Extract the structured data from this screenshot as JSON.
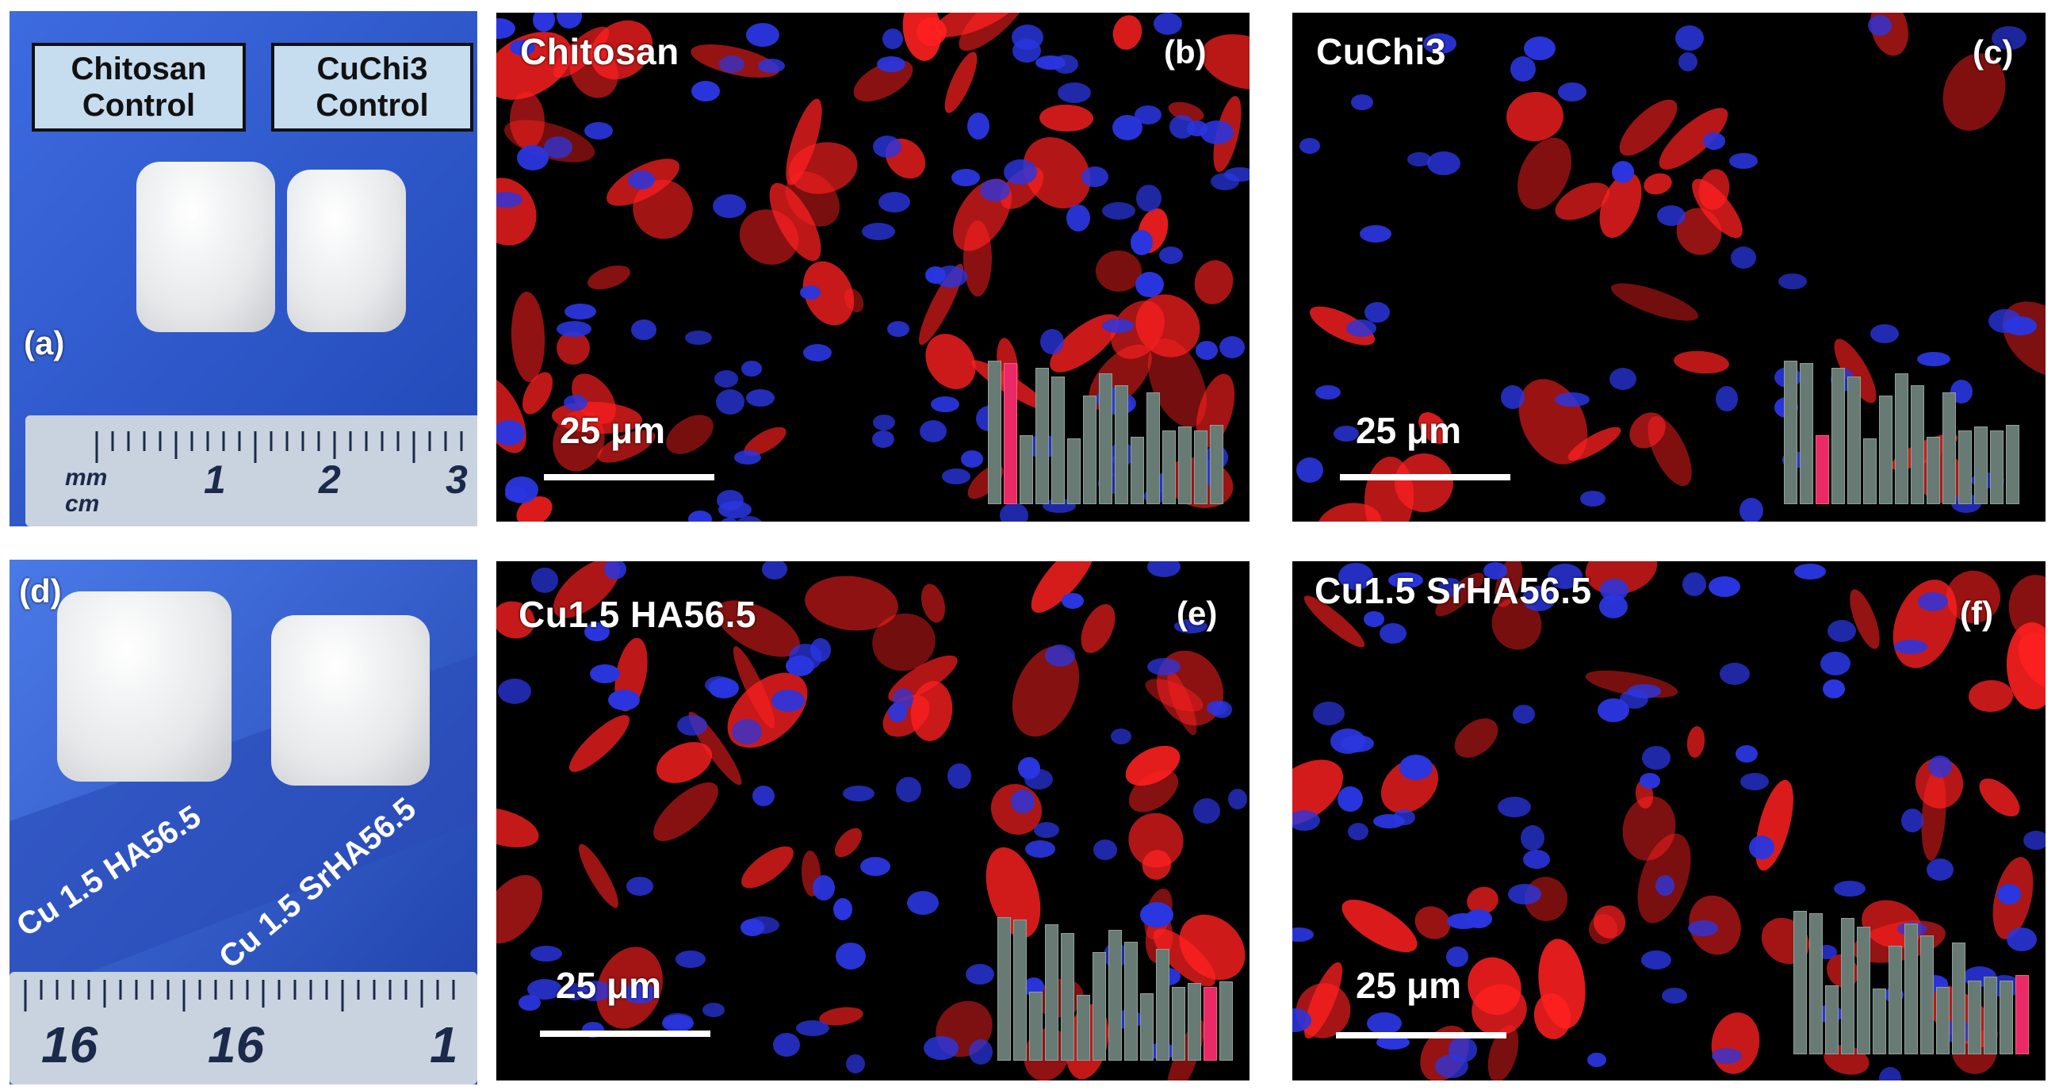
{
  "panels": {
    "a": {
      "label": "(a)",
      "left_sample": {
        "line1": "Chitosan",
        "line2": "Control"
      },
      "right_sample": {
        "line1": "CuChi3",
        "line2": "Control"
      },
      "ruler": {
        "unit_mm": "mm",
        "unit_cm": "cm",
        "ticks": [
          "1",
          "2",
          "3"
        ]
      }
    },
    "b": {
      "label": "(b)",
      "title": "Chitosan",
      "scale": "25 μm",
      "highlight_bar": 1
    },
    "c": {
      "label": "(c)",
      "title": "CuChi3",
      "scale": "25 μm",
      "highlight_bar": 2
    },
    "d": {
      "label": "(d)",
      "left_sample": "Cu 1.5 HA56.5",
      "right_sample": "Cu 1.5 SrHA56.5",
      "ruler": {
        "ticks": [
          "16",
          "16",
          "1"
        ]
      }
    },
    "e": {
      "label": "(e)",
      "title": "Cu1.5 HA56.5",
      "scale": "25 μm",
      "highlight_bar": 13
    },
    "f": {
      "label": "(f)",
      "title": "Cu1.5 SrHA56.5",
      "scale": "25 μm",
      "highlight_bar": 14
    }
  },
  "inset_bars": {
    "values": [
      0.98,
      0.96,
      0.47,
      0.93,
      0.87,
      0.45,
      0.74,
      0.89,
      0.81,
      0.46,
      0.76,
      0.5,
      0.53,
      0.5,
      0.54
    ]
  },
  "colors": {
    "highlight": "#ea2a66",
    "bar": "#677a74",
    "stain_red": "#ff2020",
    "stain_blue": "#2a36e0"
  }
}
